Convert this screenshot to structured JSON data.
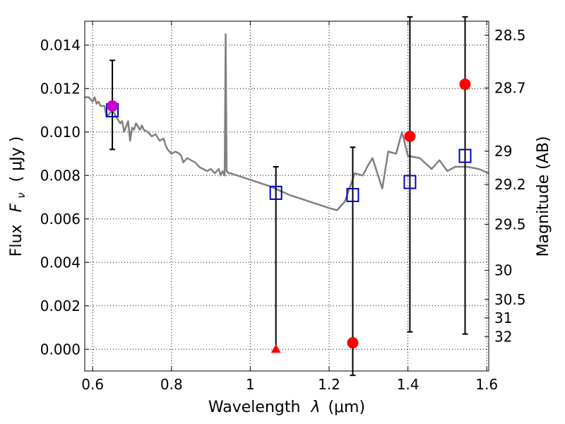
{
  "chart_data": {
    "type": "scatter",
    "xlabel_text": "Wavelength",
    "xlabel_symbol": "λ",
    "xlabel_unit": "(μm)",
    "ylabel_text": "Flux",
    "ylabel_symbol": "F",
    "ylabel_subscript": "ν",
    "ylabel_unit": "( μJy )",
    "y2label": "Magnitude (AB)",
    "xlim": [
      0.58,
      1.605
    ],
    "ylim": [
      -0.001,
      0.0151
    ],
    "grid": true,
    "x_ticks": [
      {
        "value": 0.6,
        "label": "0.6"
      },
      {
        "value": 0.8,
        "label": "0.8"
      },
      {
        "value": 1.0,
        "label": "1"
      },
      {
        "value": 1.2,
        "label": "1.2"
      },
      {
        "value": 1.4,
        "label": "1.4"
      },
      {
        "value": 1.6,
        "label": "1.6"
      }
    ],
    "y_ticks": [
      {
        "value": 0.0,
        "label": "0.000"
      },
      {
        "value": 0.002,
        "label": "0.002"
      },
      {
        "value": 0.004,
        "label": "0.004"
      },
      {
        "value": 0.006,
        "label": "0.006"
      },
      {
        "value": 0.008,
        "label": "0.008"
      },
      {
        "value": 0.01,
        "label": "0.010"
      },
      {
        "value": 0.012,
        "label": "0.012"
      },
      {
        "value": 0.014,
        "label": "0.014"
      }
    ],
    "mag_ticks": [
      {
        "value": 28.5,
        "label": "28.5"
      },
      {
        "value": 28.7,
        "label": "28.7"
      },
      {
        "value": 29.0,
        "label": "29"
      },
      {
        "value": 29.2,
        "label": "29.2"
      },
      {
        "value": 29.5,
        "label": "29.5"
      },
      {
        "value": 30.0,
        "label": "30"
      },
      {
        "value": 30.5,
        "label": "30.5"
      },
      {
        "value": 31.0,
        "label": "31"
      },
      {
        "value": 32.0,
        "label": "32"
      }
    ],
    "model_spectrum": {
      "color": "#808080",
      "x": [
        0.58,
        0.59,
        0.6,
        0.605,
        0.61,
        0.615,
        0.62,
        0.63,
        0.635,
        0.64,
        0.65,
        0.66,
        0.67,
        0.675,
        0.68,
        0.69,
        0.695,
        0.7,
        0.705,
        0.71,
        0.72,
        0.725,
        0.73,
        0.74,
        0.75,
        0.76,
        0.77,
        0.78,
        0.785,
        0.79,
        0.8,
        0.81,
        0.82,
        0.825,
        0.83,
        0.84,
        0.85,
        0.86,
        0.87,
        0.88,
        0.89,
        0.9,
        0.91,
        0.92,
        0.925,
        0.93,
        0.935,
        0.9375,
        0.94,
        0.945,
        0.95,
        1.0,
        1.05,
        1.1,
        1.15,
        1.2,
        1.22,
        1.24,
        1.265,
        1.285,
        1.3,
        1.31,
        1.335,
        1.35,
        1.37,
        1.385,
        1.4,
        1.43,
        1.46,
        1.48,
        1.5,
        1.52,
        1.55,
        1.58,
        1.605
      ],
      "y": [
        0.0116,
        0.0116,
        0.0114,
        0.0116,
        0.0113,
        0.0114,
        0.0112,
        0.0112,
        0.0107,
        0.0108,
        0.011,
        0.0107,
        0.0104,
        0.0105,
        0.01,
        0.0105,
        0.0096,
        0.0102,
        0.0101,
        0.0104,
        0.0101,
        0.0103,
        0.0101,
        0.01,
        0.0098,
        0.0099,
        0.0096,
        0.0097,
        0.0094,
        0.0092,
        0.009,
        0.0091,
        0.009,
        0.0089,
        0.0086,
        0.0088,
        0.0087,
        0.0086,
        0.0084,
        0.0083,
        0.0082,
        0.0083,
        0.0081,
        0.0083,
        0.008,
        0.0082,
        0.008,
        0.0145,
        0.0082,
        0.0081,
        0.0081,
        0.0078,
        0.0075,
        0.0071,
        0.0068,
        0.0065,
        0.0064,
        0.0068,
        0.0081,
        0.008,
        0.0085,
        0.0088,
        0.0074,
        0.0091,
        0.009,
        0.01,
        0.0089,
        0.0088,
        0.0083,
        0.0087,
        0.0082,
        0.0084,
        0.0084,
        0.0083,
        0.0081
      ]
    },
    "model_bands": {
      "color": "#0000cc",
      "x": [
        0.65,
        1.065,
        1.26,
        1.405,
        1.545
      ],
      "y": [
        0.011,
        0.0072,
        0.0071,
        0.0077,
        0.0089
      ]
    },
    "observed": {
      "color": "#ff0000",
      "points": [
        {
          "x": 1.065,
          "y": 0.0,
          "marker": "triangle",
          "err_low": 0.0,
          "err_high": 0.0084
        },
        {
          "x": 1.26,
          "y": 0.0003,
          "marker": "circle",
          "err_low": -0.0012,
          "err_high": 0.0093
        },
        {
          "x": 1.405,
          "y": 0.0098,
          "marker": "circle",
          "err_low": 0.0008,
          "err_high": 0.0153
        },
        {
          "x": 1.545,
          "y": 0.0122,
          "marker": "circle",
          "err_low": 0.0007,
          "err_high": 0.0153
        }
      ]
    },
    "highlight": {
      "color": "#cc00cc",
      "x": 0.65,
      "y": 0.0112,
      "err_low": 0.0092,
      "err_high": 0.0133
    }
  }
}
